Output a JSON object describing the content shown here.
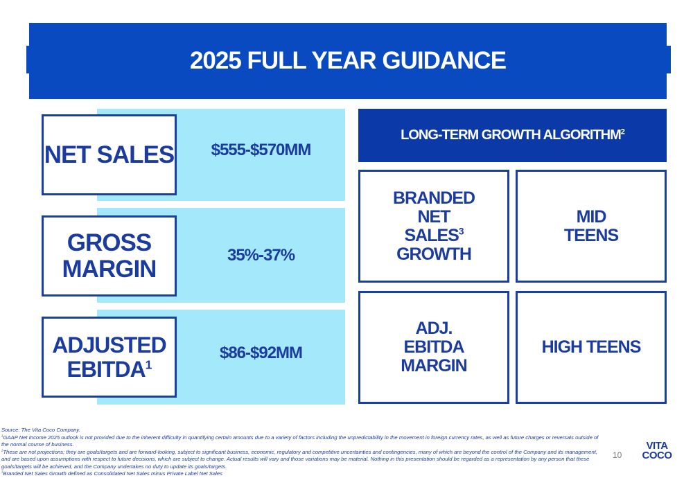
{
  "header": {
    "title": "2025 FULL YEAR GUIDANCE"
  },
  "guidance": [
    {
      "label": "NET SALES",
      "value": "$555-$570MM"
    },
    {
      "label": "GROSS MARGIN",
      "value": "35%-37%"
    },
    {
      "label": "ADJUSTED EBITDA",
      "sup": "1",
      "value": "$86-$92MM"
    }
  ],
  "long_term": {
    "title": "LONG-TERM GROWTH ALGORITHM",
    "title_sup": "2",
    "items": [
      {
        "label_a": "BRANDED NET SALES",
        "sup": "3",
        "label_b": "GROWTH",
        "value": "MID TEENS"
      },
      {
        "label_a": "ADJ. EBITDA MARGIN",
        "value": "HIGH TEENS"
      }
    ]
  },
  "footnotes": {
    "source": "Source: The Vita Coco Company.",
    "notes": [
      {
        "sup": "1",
        "text": "GAAP Net Income 2025 outlook is not provided due to the inherent difficulty in quantifying certain amounts due to a variety of factors including the unpredictability in the movement in foreign currency rates, as well as future charges or reversals outside of the normal course of business."
      },
      {
        "sup": "2",
        "text": "These are not projections; they are goals/targets and are forward-looking, subject to significant business, economic, regulatory and competitive uncertainties and contingencies, many of which are beyond the control of the Company and its management, and are based upon assumptions with respect to future decisions, which are subject to change. Actual results will vary and those variations may be material. Nothing in this presentation should be regarded as a representation by any person that these goals/targets will be achieved, and the Company undertakes no duty to update its goals/targets."
      },
      {
        "sup": "3",
        "text": "Branded Net Sales Growth defined as Consolidated Net Sales minus Private Label Net Sales"
      }
    ]
  },
  "page_number": "10",
  "logo": {
    "line1": "VITA",
    "line2": "COCO"
  }
}
